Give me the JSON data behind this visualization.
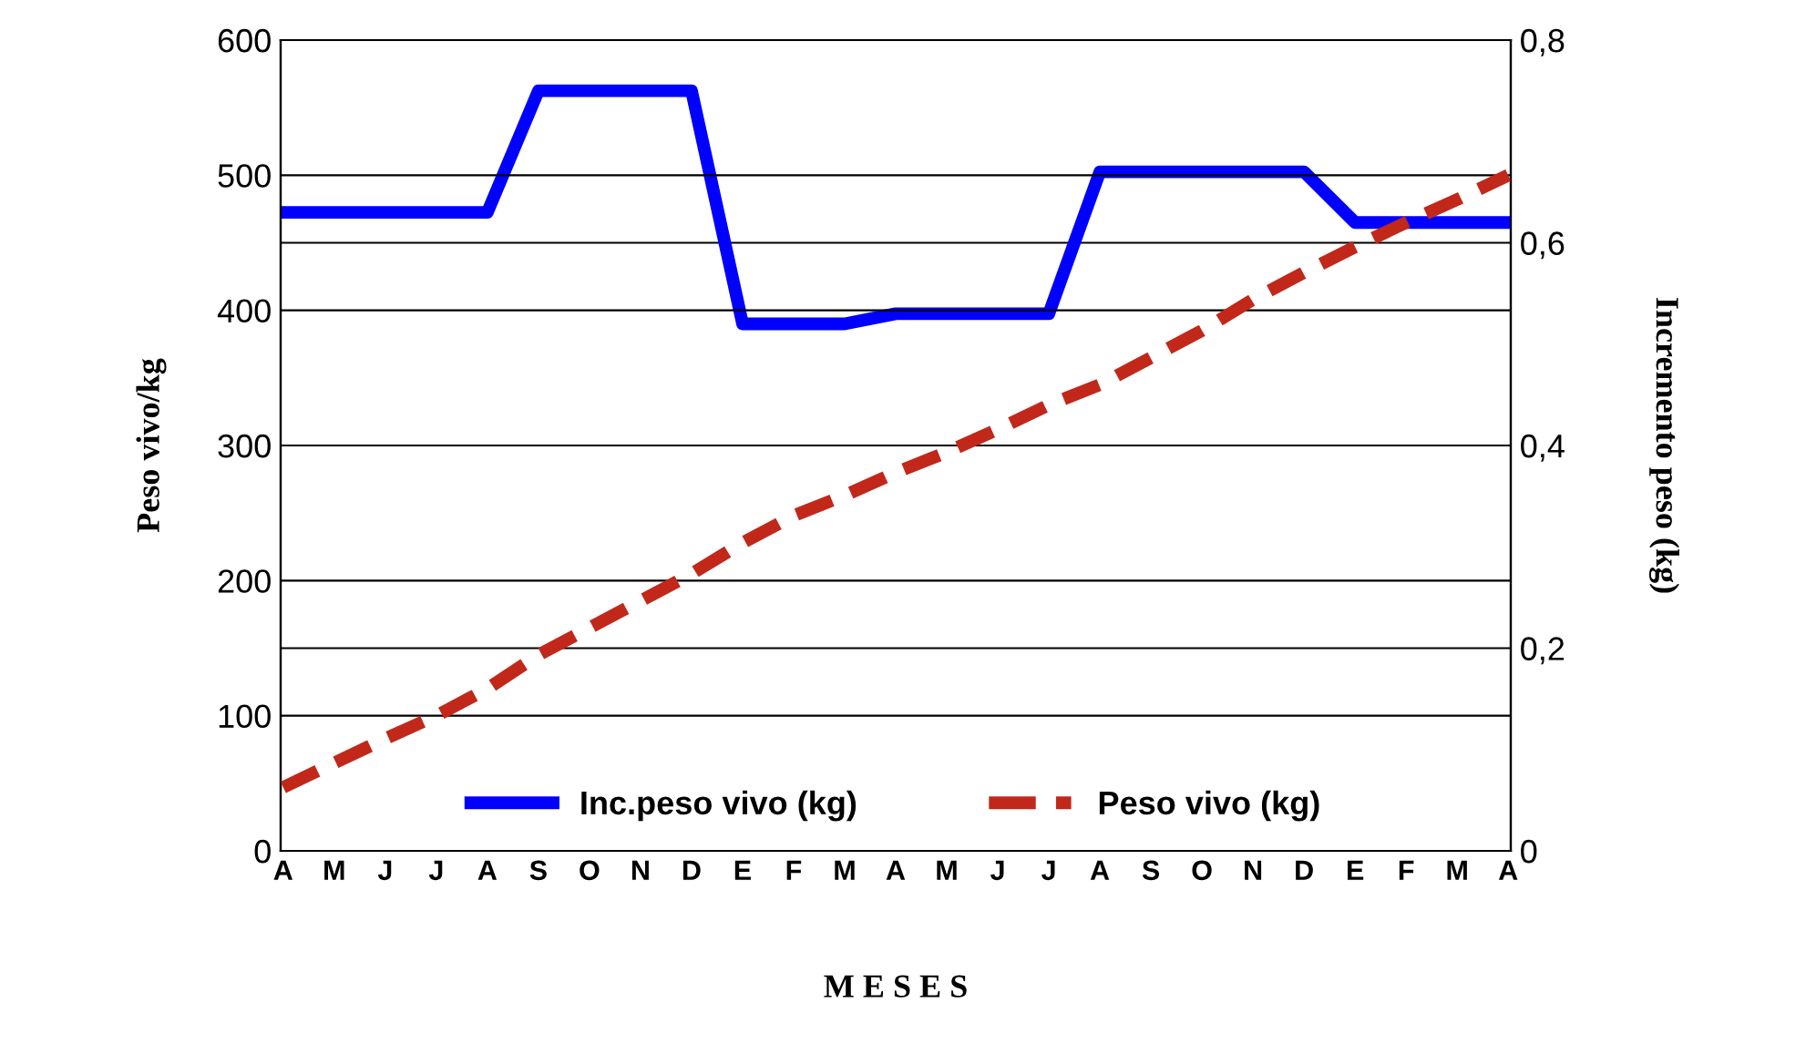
{
  "chart_data": {
    "type": "line",
    "xlabel": "M E S E S",
    "ylabel": "Peso vivo/kg",
    "y2label": "Incremento peso (kg)",
    "categories": [
      "A",
      "M",
      "J",
      "J",
      "A",
      "S",
      "O",
      "N",
      "D",
      "E",
      "F",
      "M",
      "A",
      "M",
      "J",
      "J",
      "A",
      "S",
      "O",
      "N",
      "D",
      "E",
      "F",
      "M",
      "A"
    ],
    "series": [
      {
        "name": "Inc.peso vivo (kg)",
        "color": "#0000ff",
        "axis": "y2",
        "line_style": "solid",
        "values": [
          0.63,
          0.63,
          0.63,
          0.63,
          0.63,
          0.75,
          0.75,
          0.75,
          0.75,
          0.52,
          0.52,
          0.52,
          0.53,
          0.53,
          0.53,
          0.53,
          0.67,
          0.67,
          0.67,
          0.67,
          0.67,
          0.62,
          0.62,
          0.62,
          0.62
        ]
      },
      {
        "name": "Peso vivo (kg)",
        "color": "#c1281a",
        "axis": "y",
        "line_style": "dashed",
        "values": [
          47,
          65,
          83,
          100,
          120,
          145,
          165,
          185,
          205,
          228,
          248,
          263,
          280,
          295,
          312,
          330,
          345,
          365,
          385,
          408,
          428,
          447,
          465,
          482,
          500
        ]
      }
    ],
    "ylim": [
      0,
      600
    ],
    "yticks": [
      0,
      100,
      200,
      300,
      400,
      500,
      600
    ],
    "y2lim": [
      0,
      0.8
    ],
    "y2ticks": [
      {
        "value": 0,
        "label": "0"
      },
      {
        "value": 0.2,
        "label": "0,2"
      },
      {
        "value": 0.4,
        "label": "0,4"
      },
      {
        "value": 0.6,
        "label": "0,6"
      },
      {
        "value": 0.8,
        "label": "0,8"
      }
    ],
    "grid": true,
    "legend": "bottom",
    "marker": "none"
  }
}
